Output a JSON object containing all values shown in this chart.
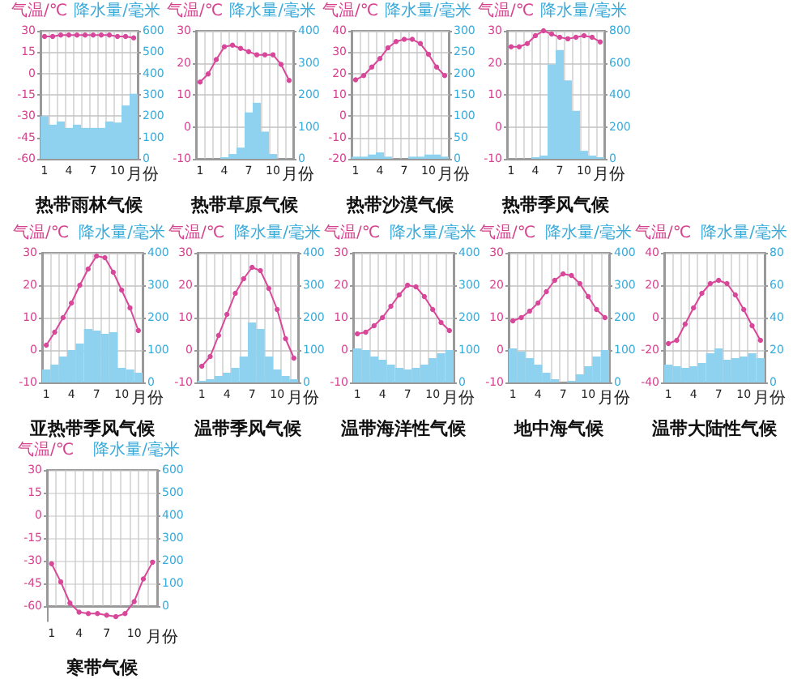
{
  "chart_data": [
    {
      "type": "bar",
      "title": "热带雨林气候",
      "xlabel": "月份",
      "ylabel": "气温/℃",
      "y2label": "降水量/毫米",
      "categories": [
        "1",
        null,
        null,
        "4",
        null,
        null,
        "7",
        null,
        null,
        "10",
        null,
        null
      ],
      "series": [
        {
          "type": "line",
          "color": "#d8479a",
          "values": [
            26,
            26,
            27,
            27,
            27,
            27,
            27,
            27,
            27,
            26,
            26,
            25
          ]
        },
        {
          "axis": "y2",
          "color": "#8ed2f0",
          "values": [
            200,
            160,
            175,
            145,
            160,
            145,
            145,
            145,
            175,
            170,
            250,
            305
          ]
        }
      ],
      "ylim": [
        -60,
        30
      ],
      "yticks": [
        -60,
        -45,
        -30,
        -15,
        0,
        15,
        30
      ],
      "y2lim": [
        0,
        600
      ],
      "y2ticks": [
        0,
        100,
        200,
        300,
        400,
        500,
        600
      ],
      "grid": true,
      "marker": "circle"
    },
    {
      "type": "bar",
      "title": "热带草原气候",
      "xlabel": "月份",
      "ylabel": "气温/℃",
      "y2label": "降水量/毫米",
      "categories": [
        "1",
        null,
        null,
        "4",
        null,
        null,
        "7",
        null,
        null,
        "10",
        null,
        null
      ],
      "series": [
        {
          "type": "line",
          "color": "#d8479a",
          "values": [
            14,
            16.5,
            21,
            25,
            25.5,
            24.5,
            23.5,
            22.5,
            22.5,
            22.5,
            19.5,
            14.5
          ]
        },
        {
          "axis": "y2",
          "color": "#8ed2f0",
          "values": [
            0,
            0,
            0,
            5,
            15,
            35,
            145,
            175,
            85,
            15,
            0,
            0
          ]
        }
      ],
      "ylim": [
        -10,
        30
      ],
      "yticks": [
        -10,
        0,
        10,
        20,
        30
      ],
      "y2lim": [
        0,
        400
      ],
      "y2ticks": [
        0,
        100,
        200,
        300,
        400
      ],
      "grid": true,
      "marker": "circle"
    },
    {
      "type": "bar",
      "title": "热带沙漠气候",
      "xlabel": "月份",
      "ylabel": "气温/℃",
      "y2label": "降水量/毫米",
      "categories": [
        "1",
        null,
        null,
        "4",
        null,
        null,
        "7",
        null,
        null,
        "10",
        null,
        null
      ],
      "series": [
        {
          "type": "line",
          "color": "#d8479a",
          "values": [
            17,
            19,
            23,
            27,
            32,
            35,
            36,
            36,
            34,
            29,
            23,
            19
          ]
        },
        {
          "axis": "y2",
          "color": "#8ed2f0",
          "values": [
            5,
            5,
            10,
            15,
            5,
            0,
            0,
            5,
            5,
            10,
            10,
            5
          ]
        }
      ],
      "ylim": [
        -20,
        40
      ],
      "yticks": [
        -20,
        -10,
        0,
        10,
        20,
        30,
        40
      ],
      "y2lim": [
        0,
        300
      ],
      "y2ticks": [
        0,
        50,
        100,
        150,
        200,
        250,
        300
      ],
      "grid": true,
      "marker": "circle"
    },
    {
      "type": "bar",
      "title": "热带季风气候",
      "xlabel": "月份",
      "ylabel": "气温/℃",
      "y2label": "降水量/毫米",
      "categories": [
        "1",
        null,
        null,
        "4",
        null,
        null,
        "7",
        null,
        null,
        "10",
        null,
        null
      ],
      "series": [
        {
          "type": "line",
          "color": "#d8479a",
          "values": [
            25,
            25,
            26,
            28.5,
            30,
            29,
            28,
            27.5,
            28,
            28.5,
            28,
            26.5
          ]
        },
        {
          "axis": "y2",
          "color": "#8ed2f0",
          "values": [
            0,
            0,
            0,
            10,
            20,
            590,
            680,
            490,
            300,
            50,
            20,
            10
          ]
        }
      ],
      "ylim": [
        -10,
        30
      ],
      "yticks": [
        -10,
        0,
        10,
        20,
        30
      ],
      "y2lim": [
        0,
        800
      ],
      "y2ticks": [
        0,
        200,
        400,
        600,
        800
      ],
      "grid": true,
      "marker": "circle"
    },
    {
      "type": "bar",
      "title": "亚热带季风气候",
      "xlabel": "月份",
      "ylabel": "气温/℃",
      "y2label": "降水量/毫米",
      "categories": [
        "1",
        null,
        null,
        "4",
        null,
        null,
        "7",
        null,
        null,
        "10",
        null,
        null
      ],
      "series": [
        {
          "type": "line",
          "color": "#d8479a",
          "values": [
            1.5,
            5.5,
            10,
            14.5,
            20,
            25,
            29,
            28.5,
            24,
            18.5,
            13,
            6
          ]
        },
        {
          "axis": "y2",
          "color": "#8ed2f0",
          "values": [
            40,
            55,
            80,
            100,
            120,
            165,
            160,
            150,
            155,
            45,
            40,
            30
          ]
        }
      ],
      "ylim": [
        -10,
        30
      ],
      "yticks": [
        -10,
        0,
        10,
        20,
        30
      ],
      "y2lim": [
        0,
        400
      ],
      "y2ticks": [
        0,
        100,
        200,
        300,
        400
      ],
      "grid": true,
      "marker": "circle"
    },
    {
      "type": "bar",
      "title": "温带季风气候",
      "xlabel": "月份",
      "ylabel": "气温/℃",
      "y2label": "降水量/毫米",
      "categories": [
        "1",
        null,
        null,
        "4",
        null,
        null,
        "7",
        null,
        null,
        "10",
        null,
        null
      ],
      "series": [
        {
          "type": "line",
          "color": "#d8479a",
          "values": [
            -5,
            -2,
            4.5,
            11,
            17.5,
            22,
            25.5,
            24.5,
            19,
            12.5,
            3.5,
            -2.5
          ]
        },
        {
          "axis": "y2",
          "color": "#8ed2f0",
          "values": [
            5,
            10,
            20,
            30,
            45,
            80,
            185,
            165,
            80,
            40,
            20,
            10
          ]
        }
      ],
      "ylim": [
        -10,
        30
      ],
      "yticks": [
        -10,
        0,
        10,
        20,
        30
      ],
      "y2lim": [
        0,
        400
      ],
      "y2ticks": [
        0,
        100,
        200,
        300,
        400
      ],
      "grid": true,
      "marker": "circle"
    },
    {
      "type": "bar",
      "title": "温带海洋性气候",
      "xlabel": "月份",
      "ylabel": "气温/℃",
      "y2label": "降水量/毫米",
      "categories": [
        "1",
        null,
        null,
        "4",
        null,
        null,
        "7",
        null,
        null,
        "10",
        null,
        null
      ],
      "series": [
        {
          "type": "line",
          "color": "#d8479a",
          "values": [
            5,
            5.5,
            7.5,
            10,
            13.5,
            17,
            20,
            19.5,
            16.5,
            12.5,
            8.5,
            6
          ]
        },
        {
          "axis": "y2",
          "color": "#8ed2f0",
          "values": [
            105,
            100,
            80,
            70,
            55,
            45,
            40,
            45,
            55,
            75,
            90,
            100
          ]
        }
      ],
      "ylim": [
        -10,
        30
      ],
      "yticks": [
        -10,
        0,
        10,
        20,
        30
      ],
      "y2lim": [
        0,
        400
      ],
      "y2ticks": [
        0,
        100,
        200,
        300,
        400
      ],
      "grid": true,
      "marker": "circle"
    },
    {
      "type": "bar",
      "title": "地中海气候",
      "xlabel": "月份",
      "ylabel": "气温/℃",
      "y2label": "降水量/毫米",
      "categories": [
        "1",
        null,
        null,
        "4",
        null,
        null,
        "7",
        null,
        null,
        "10",
        null,
        null
      ],
      "series": [
        {
          "type": "line",
          "color": "#d8479a",
          "values": [
            9,
            10,
            12,
            14.5,
            18,
            21.5,
            23.5,
            23,
            20.5,
            16.5,
            12.5,
            10
          ]
        },
        {
          "axis": "y2",
          "color": "#8ed2f0",
          "values": [
            105,
            95,
            75,
            55,
            30,
            10,
            0,
            5,
            25,
            50,
            80,
            100
          ]
        }
      ],
      "ylim": [
        -10,
        30
      ],
      "yticks": [
        -10,
        0,
        10,
        20,
        30
      ],
      "y2lim": [
        0,
        400
      ],
      "y2ticks": [
        0,
        100,
        200,
        300,
        400
      ],
      "grid": true,
      "marker": "circle"
    },
    {
      "type": "bar",
      "title": "温带大陆性气候",
      "xlabel": "月份",
      "ylabel": "气温/℃",
      "y2label": "降水量/毫米",
      "categories": [
        "1",
        null,
        null,
        "4",
        null,
        null,
        "7",
        null,
        null,
        "10",
        null,
        null
      ],
      "series": [
        {
          "type": "line",
          "color": "#d8479a",
          "values": [
            -16,
            -14,
            -4,
            6,
            15,
            21,
            23,
            21,
            14,
            5,
            -5,
            -14
          ]
        },
        {
          "axis": "y2",
          "color": "#8ed2f0",
          "values": [
            11,
            10,
            9,
            10,
            12,
            18,
            21,
            14,
            15,
            16,
            18,
            15
          ]
        }
      ],
      "ylim": [
        -40,
        40
      ],
      "yticks": [
        -40,
        -20,
        0,
        20,
        40
      ],
      "y2lim": [
        0,
        80
      ],
      "y2ticks": [
        0,
        20,
        40,
        60,
        80
      ],
      "grid": true,
      "marker": "circle"
    },
    {
      "type": "line",
      "title": "寒带气候",
      "xlabel": "月份",
      "ylabel": "气温/℃",
      "y2label": "降水量/毫米",
      "categories": [
        "1",
        null,
        null,
        "4",
        null,
        null,
        "7",
        null,
        null,
        "10",
        null,
        null
      ],
      "series": [
        {
          "color": "#d8479a",
          "values": [
            -32,
            -44,
            -58,
            -64,
            -65,
            -65,
            -66,
            -67,
            -65,
            -57,
            -42,
            -31
          ]
        }
      ],
      "ylim": [
        -70,
        30
      ],
      "yticks": [
        -60,
        -45,
        -30,
        -15,
        0,
        15,
        30
      ],
      "y2lim": [
        0,
        600
      ],
      "y2ticks": [
        0,
        100,
        200,
        300,
        400,
        500,
        600
      ],
      "grid": true,
      "marker": "circle"
    }
  ]
}
